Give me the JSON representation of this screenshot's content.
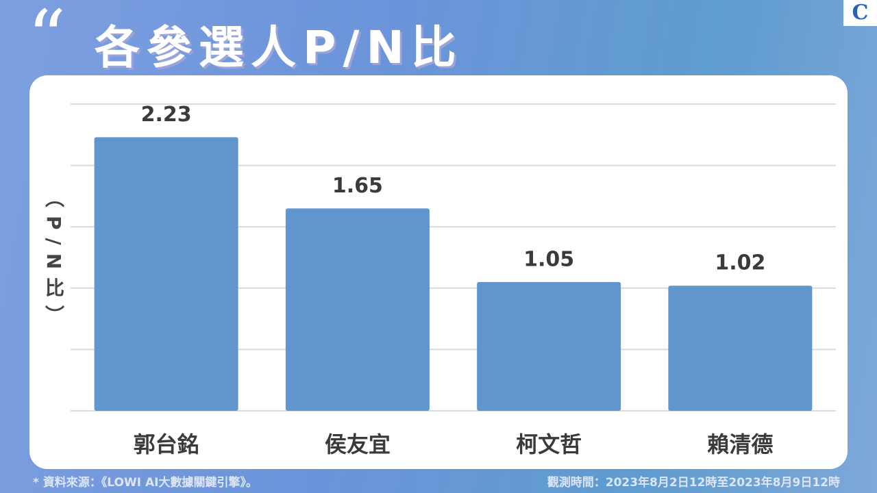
{
  "chart_data": {
    "type": "bar",
    "title": "各參選人P/N比",
    "y_label": "（P/N比）",
    "categories": [
      "郭台銘",
      "侯友宜",
      "柯文哲",
      "賴清德"
    ],
    "values": [
      2.23,
      1.65,
      1.05,
      1.02
    ],
    "color": "#6096cd",
    "ylim": [
      0,
      2.5
    ],
    "yticks": [
      0,
      0.5,
      1,
      1.5,
      2,
      2.5
    ],
    "grid": true,
    "source": "* 資料來源：《LOWI AI大數據關鍵引擎》。",
    "period": "觀測時間：2023年8月2日12時至2023年8月9日12時"
  }
}
